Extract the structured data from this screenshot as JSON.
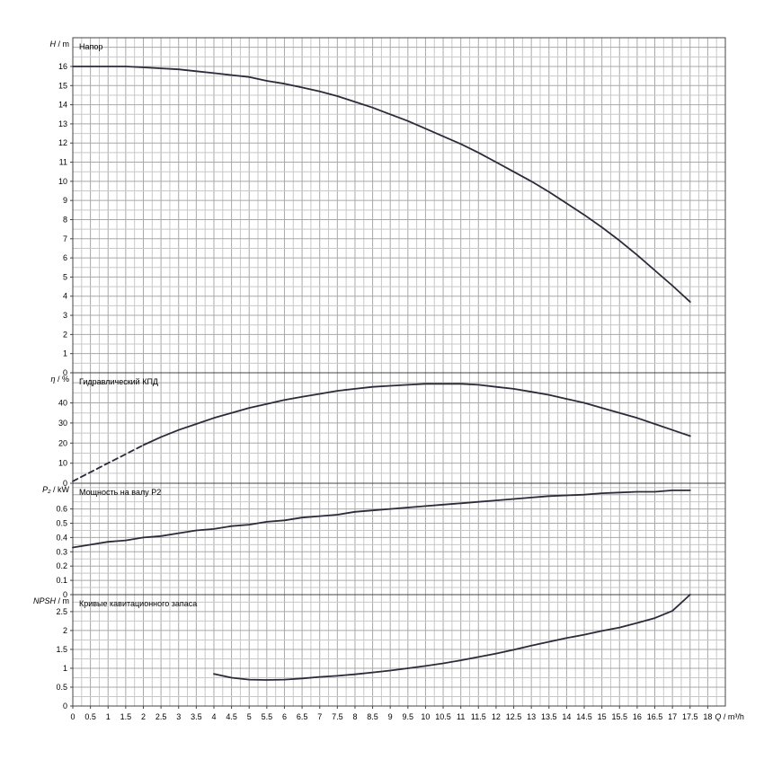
{
  "chart_data": {
    "type": "line",
    "x_axis": {
      "label_italic": "Q",
      "label_unit": "/ m³/h",
      "range": [
        0,
        18.5
      ],
      "ticks": [
        "0",
        "0.5",
        "1",
        "1.5",
        "2",
        "2.5",
        "3",
        "3.5",
        "4",
        "4.5",
        "5",
        "5.5",
        "6",
        "6.5",
        "7",
        "7.5",
        "8",
        "8.5",
        "9",
        "9.5",
        "10",
        "10.5",
        "11",
        "11.5",
        "12",
        "12.5",
        "13",
        "13.5",
        "14",
        "14.5",
        "15",
        "15.5",
        "16",
        "16.5",
        "17",
        "17.5",
        "18"
      ]
    },
    "panels": [
      {
        "id": "head",
        "title": "Напор",
        "ylabel_italic": "H",
        "ylabel_unit": "/ m",
        "ylim": [
          0,
          17.5
        ],
        "yticks": [
          "0",
          "1",
          "2",
          "3",
          "4",
          "5",
          "6",
          "7",
          "8",
          "9",
          "10",
          "11",
          "12",
          "13",
          "14",
          "15",
          "16"
        ],
        "series": [
          {
            "x": [
              0,
              1,
              1.5,
              2,
              2.5,
              3,
              3.5,
              4,
              4.5,
              5,
              5.5,
              6,
              6.5,
              7,
              7.5,
              8,
              8.5,
              9,
              9.5,
              10,
              10.5,
              11,
              11.5,
              12,
              12.5,
              13,
              13.5,
              14,
              14.5,
              15,
              15.5,
              16,
              16.5,
              17,
              17.5
            ],
            "y": [
              16,
              16,
              16,
              15.95,
              15.9,
              15.85,
              15.75,
              15.65,
              15.55,
              15.45,
              15.25,
              15.1,
              14.9,
              14.7,
              14.45,
              14.15,
              13.85,
              13.5,
              13.15,
              12.75,
              12.35,
              11.95,
              11.5,
              11.0,
              10.5,
              10.0,
              9.45,
              8.85,
              8.25,
              7.6,
              6.9,
              6.15,
              5.35,
              4.55,
              3.7
            ]
          }
        ]
      },
      {
        "id": "efficiency",
        "title": "Гидравлический КПД",
        "ylabel_italic": "η",
        "ylabel_unit": "/ %",
        "ylim": [
          0,
          55
        ],
        "yticks": [
          "0",
          "10",
          "20",
          "30",
          "40"
        ],
        "series": [
          {
            "style": "dashed",
            "x": [
              0,
              0.5,
              1,
              1.5,
              2
            ],
            "y": [
              1,
              5.5,
              10,
              14.5,
              19
            ]
          },
          {
            "style": "solid",
            "x": [
              2,
              2.5,
              3,
              3.5,
              4,
              4.5,
              5,
              5.5,
              6,
              6.5,
              7,
              7.5,
              8,
              8.5,
              9,
              9.5,
              10,
              10.5,
              11,
              11.5,
              12,
              12.5,
              13,
              13.5,
              14,
              14.5,
              15,
              15.5,
              16,
              16.5,
              17,
              17.5
            ],
            "y": [
              19,
              23,
              26.5,
              29.5,
              32.5,
              35,
              37.5,
              39.5,
              41.5,
              43,
              44.5,
              46,
              47,
              48,
              48.5,
              49,
              49.5,
              49.5,
              49.5,
              49,
              48,
              47,
              45.5,
              44,
              42,
              40,
              37.5,
              35,
              32.5,
              29.5,
              26.5,
              23.5
            ]
          }
        ]
      },
      {
        "id": "power",
        "title": "Мощность на валу P2",
        "ylabel_italic": "P₂",
        "ylabel_unit": "/ kW",
        "ylim": [
          0,
          0.78
        ],
        "yticks": [
          "0",
          "0.1",
          "0.2",
          "0.3",
          "0.4",
          "0.5",
          "0.6"
        ],
        "series": [
          {
            "x": [
              0,
              0.5,
              1,
              1.5,
              2,
              2.5,
              3,
              3.5,
              4,
              4.5,
              5,
              5.5,
              6,
              6.5,
              7,
              7.5,
              8,
              8.5,
              9,
              9.5,
              10,
              10.5,
              11,
              11.5,
              12,
              12.5,
              13,
              13.5,
              14,
              14.5,
              15,
              15.5,
              16,
              16.5,
              17,
              17.5
            ],
            "y": [
              0.33,
              0.35,
              0.37,
              0.38,
              0.4,
              0.41,
              0.43,
              0.45,
              0.46,
              0.48,
              0.49,
              0.51,
              0.52,
              0.54,
              0.55,
              0.56,
              0.58,
              0.59,
              0.6,
              0.61,
              0.62,
              0.63,
              0.64,
              0.65,
              0.66,
              0.67,
              0.68,
              0.69,
              0.695,
              0.7,
              0.71,
              0.715,
              0.72,
              0.72,
              0.73,
              0.73
            ]
          }
        ]
      },
      {
        "id": "npsh",
        "title": "Кривые кавитационного запаса",
        "ylabel_italic": "NPSH",
        "ylabel_unit": "/ m",
        "ylim": [
          0,
          2.95
        ],
        "yticks": [
          "0",
          "0.5",
          "1",
          "1.5",
          "2",
          "2.5"
        ],
        "series": [
          {
            "x": [
              4,
              4.5,
              5,
              5.5,
              6,
              6.5,
              7,
              7.5,
              8,
              8.5,
              9,
              9.5,
              10,
              10.5,
              11,
              11.5,
              12,
              12.5,
              13,
              13.5,
              14,
              14.5,
              15,
              15.5,
              16,
              16.5,
              17,
              17.5
            ],
            "y": [
              0.85,
              0.75,
              0.7,
              0.69,
              0.7,
              0.73,
              0.77,
              0.8,
              0.84,
              0.89,
              0.94,
              1.0,
              1.06,
              1.13,
              1.21,
              1.3,
              1.39,
              1.49,
              1.6,
              1.7,
              1.8,
              1.89,
              1.99,
              2.08,
              2.2,
              2.33,
              2.52,
              2.95
            ]
          }
        ]
      }
    ]
  }
}
